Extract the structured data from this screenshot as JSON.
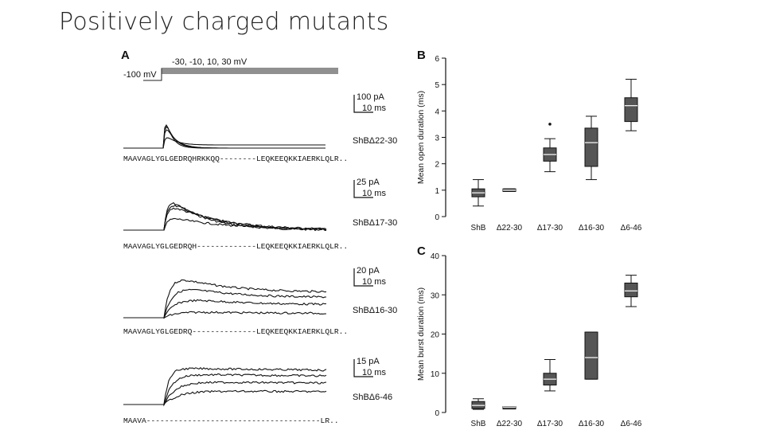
{
  "slide": {
    "title": "Positively charged mutants"
  },
  "panel_a": {
    "label": "A",
    "protocol": {
      "step_label": "-30, -10, 10, 30 mV",
      "holding_label": "-100 mV"
    },
    "traces": [
      {
        "scale_current": "100 pA",
        "scale_time": "10 ms",
        "construct": "ShBΔ22-30",
        "sequence": "MAAVAGLYGLGEDRQHRKKQQ--------LEQKEEQKKIAERKLQLR.."
      },
      {
        "scale_current": "25 pA",
        "scale_time": "10 ms",
        "construct": "ShBΔ17-30",
        "sequence": "MAAVAGLYGLGEDRQH-------------LEQKEEQKKIAERKLQLR.."
      },
      {
        "scale_current": "20 pA",
        "scale_time": "10 ms",
        "construct": "ShBΔ16-30",
        "sequence": "MAAVAGLYGLGEDRQ--------------LEQKEEQKKIAERKLQLR.."
      },
      {
        "scale_current": "15 pA",
        "scale_time": "10 ms",
        "construct": "ShBΔ6-46",
        "sequence": "MAAVA--------------------------------------LR.."
      }
    ]
  },
  "chart_data": [
    {
      "panel": "B",
      "type": "box",
      "title": "",
      "xlabel": "",
      "ylabel": "Mean open duration (ms)",
      "ylim": [
        0,
        6
      ],
      "yticks": [
        "0",
        "1",
        "2",
        "3",
        "4",
        "5",
        "6"
      ],
      "categories": [
        "ShB",
        "Δ22-30",
        "Δ17-30",
        "Δ16-30",
        "Δ6-46"
      ],
      "boxes": [
        {
          "min": 0.4,
          "q1": 0.75,
          "median": 0.9,
          "q3": 1.05,
          "max": 1.4,
          "outliers": []
        },
        {
          "min": 0.95,
          "q1": 0.95,
          "median": 1.0,
          "q3": 1.05,
          "max": 1.05,
          "outliers": []
        },
        {
          "min": 1.7,
          "q1": 2.1,
          "median": 2.35,
          "q3": 2.6,
          "max": 2.95,
          "outliers": [
            3.5
          ]
        },
        {
          "min": 1.4,
          "q1": 1.9,
          "median": 2.8,
          "q3": 3.35,
          "max": 3.8,
          "outliers": []
        },
        {
          "min": 3.25,
          "q1": 3.6,
          "median": 4.2,
          "q3": 4.5,
          "max": 5.2,
          "outliers": []
        }
      ]
    },
    {
      "panel": "C",
      "type": "box",
      "title": "",
      "xlabel": "",
      "ylabel": "Mean burst duration (ms)",
      "ylim": [
        0,
        40
      ],
      "yticks": [
        "0",
        "10",
        "20",
        "30",
        "40"
      ],
      "categories": [
        "ShB",
        "Δ22-30",
        "Δ17-30",
        "Δ16-30",
        "Δ6-46"
      ],
      "boxes": [
        {
          "min": 0.8,
          "q1": 1.0,
          "median": 1.8,
          "q3": 2.8,
          "max": 3.5,
          "outliers": []
        },
        {
          "min": 1.3,
          "q1": 1.3,
          "median": 1.4,
          "q3": 1.5,
          "max": 1.5,
          "outliers": []
        },
        {
          "min": 5.5,
          "q1": 7.0,
          "median": 8.5,
          "q3": 10.0,
          "max": 13.5,
          "outliers": []
        },
        {
          "min": 8.5,
          "q1": 8.5,
          "median": 14.0,
          "q3": 20.5,
          "max": 20.5,
          "outliers": []
        },
        {
          "min": 27.0,
          "q1": 29.5,
          "median": 31.0,
          "q3": 33.0,
          "max": 35.0,
          "outliers": []
        }
      ]
    }
  ]
}
